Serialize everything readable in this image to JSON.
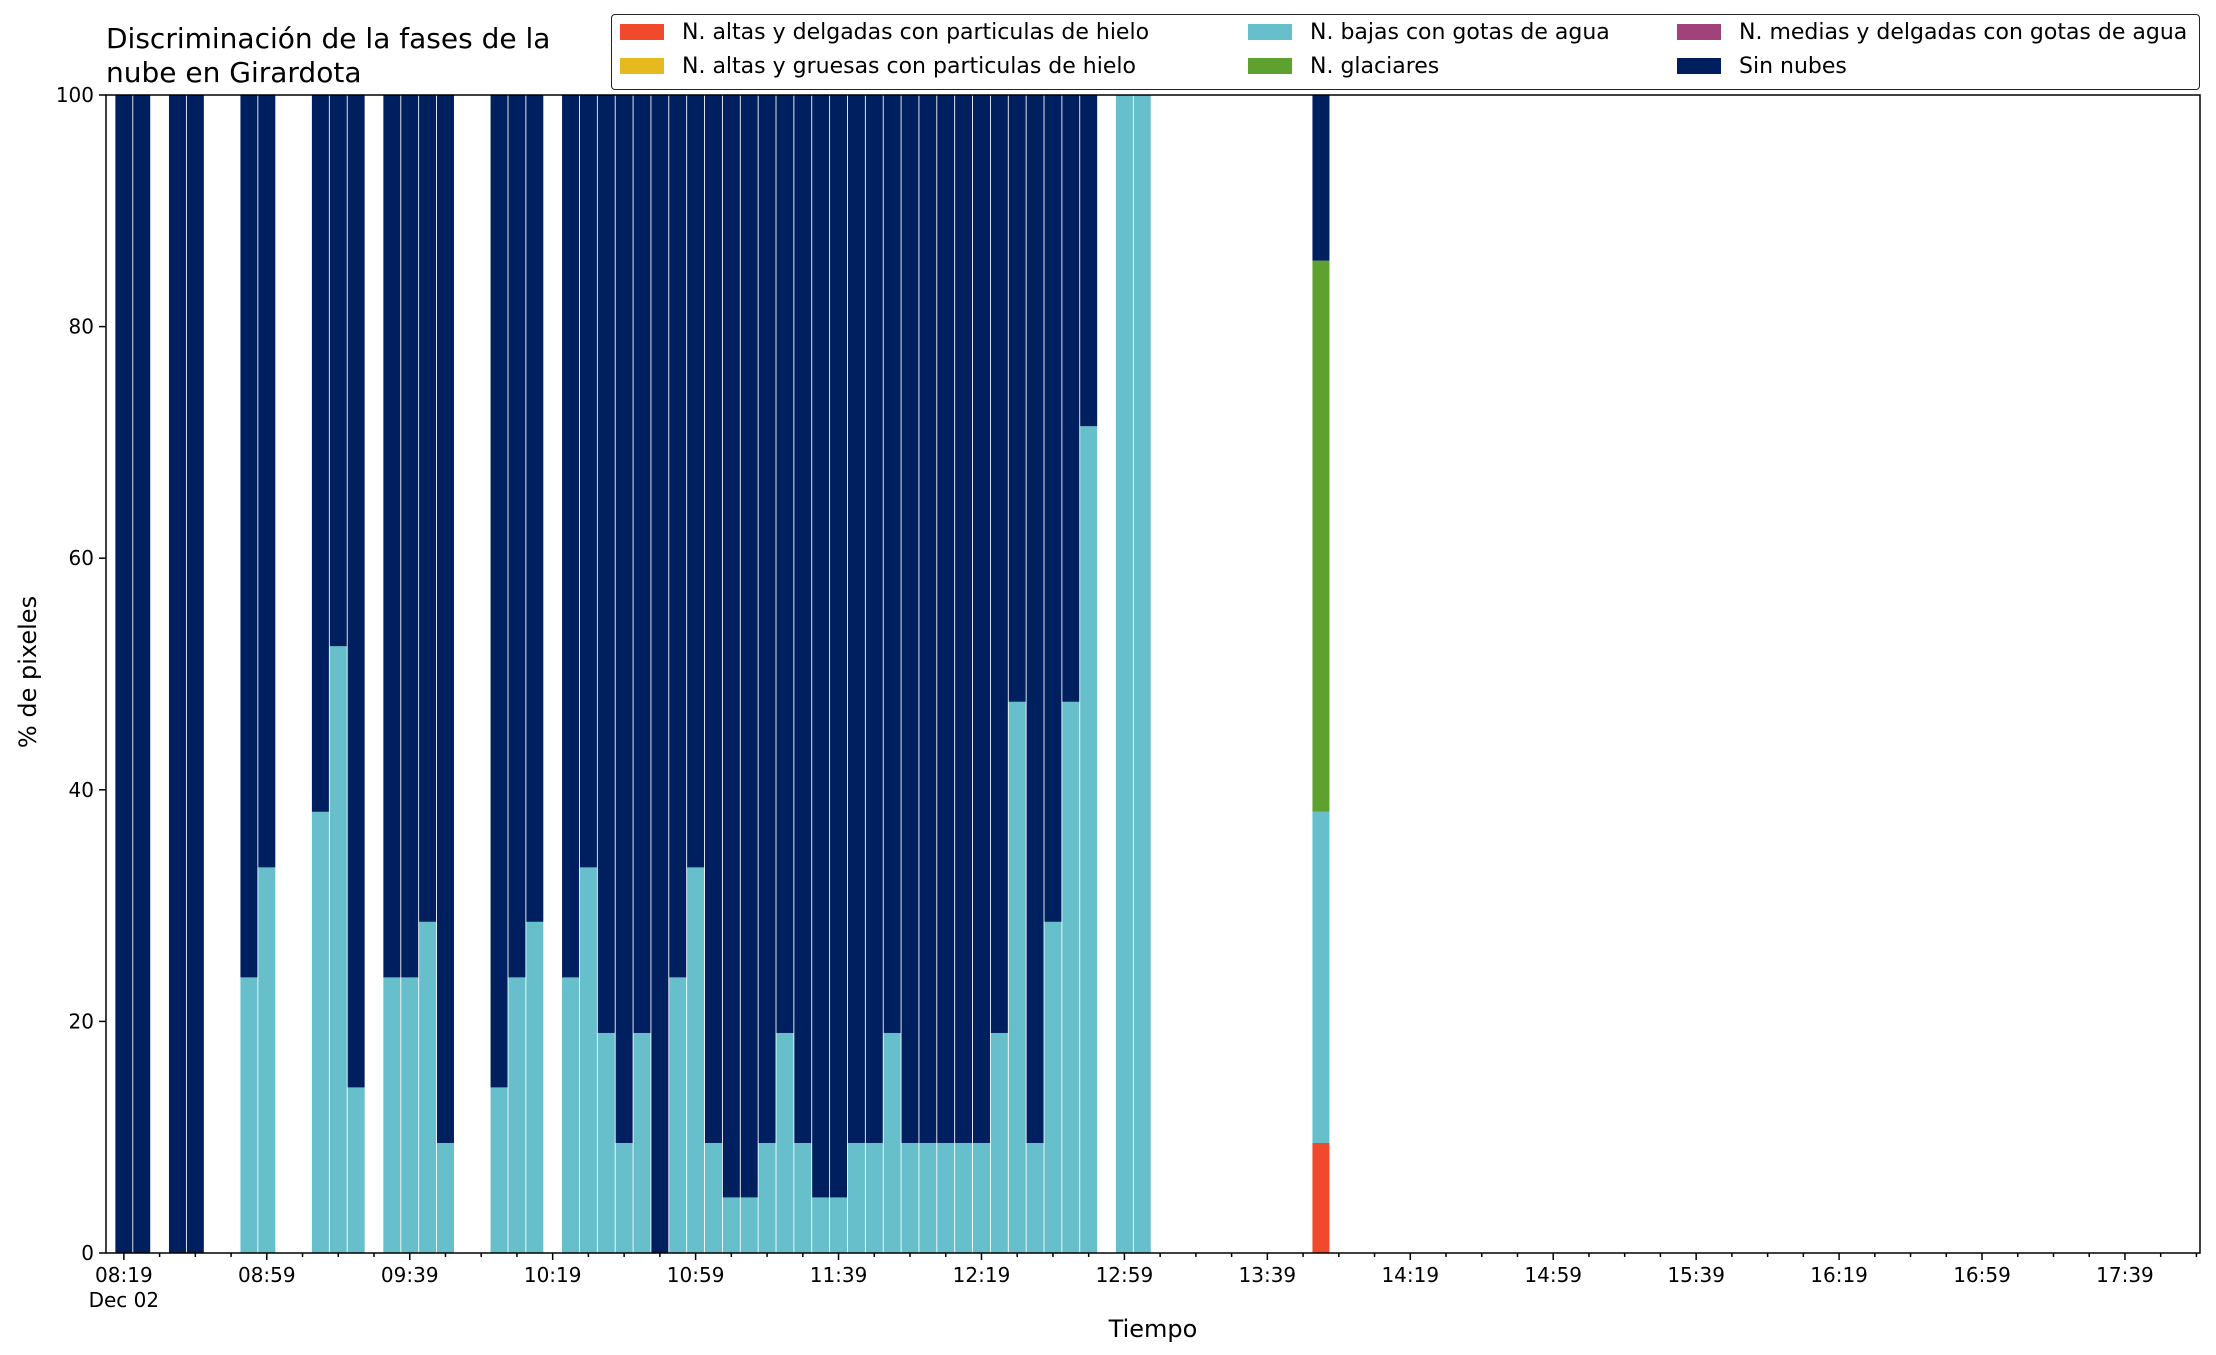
{
  "chart_data": {
    "type": "bar",
    "stacked": true,
    "title": "Discriminación de la fases de la\nnube en Girardota",
    "xlabel": "Tiempo",
    "ylabel": "% de pixeles",
    "ylim": [
      0,
      100
    ],
    "yticks": [
      "0",
      "20",
      "40",
      "60",
      "80",
      "100"
    ],
    "xticks": [
      {
        "label": "08:19",
        "sublabel": "Dec 02"
      },
      {
        "label": "08:59"
      },
      {
        "label": "09:39"
      },
      {
        "label": "10:19"
      },
      {
        "label": "10:59"
      },
      {
        "label": "11:39"
      },
      {
        "label": "12:19"
      },
      {
        "label": "12:59"
      },
      {
        "label": "13:39"
      },
      {
        "label": "14:19"
      },
      {
        "label": "14:59"
      },
      {
        "label": "15:39"
      },
      {
        "label": "16:19"
      },
      {
        "label": "16:59"
      },
      {
        "label": "17:39"
      }
    ],
    "legend_position": "top-right",
    "x": [
      "08:19",
      "08:24",
      "08:34",
      "08:39",
      "08:54",
      "08:59",
      "09:14",
      "09:19",
      "09:24",
      "09:34",
      "09:39",
      "09:44",
      "09:49",
      "10:04",
      "10:09",
      "10:14",
      "10:24",
      "10:29",
      "10:34",
      "10:39",
      "10:44",
      "10:49",
      "10:54",
      "10:59",
      "11:04",
      "11:09",
      "11:14",
      "11:19",
      "11:24",
      "11:29",
      "11:34",
      "11:39",
      "11:44",
      "11:49",
      "11:54",
      "11:59",
      "12:04",
      "12:09",
      "12:14",
      "12:19",
      "12:24",
      "12:29",
      "12:34",
      "12:39",
      "12:44",
      "12:49",
      "12:59",
      "13:04",
      "13:09",
      "13:14",
      "13:19",
      "13:24",
      "13:29",
      "13:34",
      "13:39",
      "13:44",
      "13:49",
      "13:54"
    ],
    "series": [
      {
        "name": "N. altas y delgadas con particulas de hielo",
        "color": "#f0492b",
        "values": [
          0,
          0,
          0,
          0,
          0,
          0,
          0,
          0,
          0,
          0,
          0,
          0,
          0,
          0,
          0,
          0,
          0,
          0,
          0,
          0,
          0,
          0,
          0,
          0,
          0,
          0,
          0,
          0,
          0,
          0,
          0,
          0,
          0,
          0,
          0,
          0,
          0,
          0,
          0,
          0,
          0,
          0,
          0,
          0,
          0,
          0,
          0,
          0,
          0,
          0,
          0,
          0,
          0,
          0,
          0,
          0,
          0,
          9.5
        ]
      },
      {
        "name": "N. altas y gruesas con particulas de hielo",
        "color": "#e6b91e",
        "values": [
          0,
          0,
          0,
          0,
          0,
          0,
          0,
          0,
          0,
          0,
          0,
          0,
          0,
          0,
          0,
          0,
          0,
          0,
          0,
          0,
          0,
          0,
          0,
          0,
          0,
          0,
          0,
          0,
          0,
          0,
          0,
          0,
          0,
          0,
          0,
          0,
          0,
          0,
          0,
          0,
          0,
          0,
          0,
          0,
          0,
          0,
          0,
          0,
          0,
          0,
          0,
          0,
          0,
          0,
          0,
          0,
          0,
          0
        ]
      },
      {
        "name": "N. bajas con gotas de agua",
        "color": "#67bfcb",
        "values": [
          0,
          0,
          0,
          0,
          23.8,
          33.3,
          38.1,
          52.4,
          14.3,
          23.8,
          23.8,
          28.6,
          9.5,
          14.3,
          23.8,
          28.6,
          23.8,
          33.3,
          19,
          9.5,
          19,
          0,
          23.8,
          33.3,
          9.5,
          4.8,
          4.8,
          9.5,
          19,
          9.5,
          4.8,
          4.8,
          9.5,
          9.5,
          19,
          9.5,
          9.5,
          9.5,
          9.5,
          9.5,
          19,
          47.6,
          9.5,
          28.6,
          47.6,
          71.4,
          100,
          100,
          0,
          0,
          0,
          0,
          0,
          0,
          0,
          0,
          0,
          28.6
        ]
      },
      {
        "name": "N. glaciares",
        "color": "#5fa12f",
        "values": [
          0,
          0,
          0,
          0,
          0,
          0,
          0,
          0,
          0,
          0,
          0,
          0,
          0,
          0,
          0,
          0,
          0,
          0,
          0,
          0,
          0,
          0,
          0,
          0,
          0,
          0,
          0,
          0,
          0,
          0,
          0,
          0,
          0,
          0,
          0,
          0,
          0,
          0,
          0,
          0,
          0,
          0,
          0,
          0,
          0,
          0,
          0,
          0,
          0,
          0,
          0,
          0,
          0,
          0,
          0,
          0,
          0,
          47.6
        ]
      },
      {
        "name": "N. medias y delgadas con gotas de agua",
        "color": "#a2427a",
        "values": [
          0,
          0,
          0,
          0,
          0,
          0,
          0,
          0,
          0,
          0,
          0,
          0,
          0,
          0,
          0,
          0,
          0,
          0,
          0,
          0,
          0,
          0,
          0,
          0,
          0,
          0,
          0,
          0,
          0,
          0,
          0,
          0,
          0,
          0,
          0,
          0,
          0,
          0,
          0,
          0,
          0,
          0,
          0,
          0,
          0,
          0,
          0,
          0,
          0,
          0,
          0,
          0,
          0,
          0,
          0,
          0,
          0,
          0
        ]
      },
      {
        "name": "Sin nubes",
        "color": "#001f5e",
        "values": [
          100,
          100,
          100,
          100,
          76.2,
          66.7,
          61.9,
          47.6,
          85.7,
          76.2,
          76.2,
          71.4,
          90.5,
          85.7,
          76.2,
          71.4,
          76.2,
          66.7,
          81,
          90.5,
          81,
          100,
          76.2,
          66.7,
          90.5,
          95.2,
          95.2,
          90.5,
          81,
          90.5,
          95.2,
          95.2,
          90.5,
          90.5,
          81,
          90.5,
          90.5,
          90.5,
          90.5,
          90.5,
          81,
          52.4,
          90.5,
          71.4,
          52.4,
          28.6,
          0,
          0,
          0,
          0,
          0,
          0,
          0,
          0,
          0,
          0,
          0,
          14.3
        ]
      }
    ]
  }
}
